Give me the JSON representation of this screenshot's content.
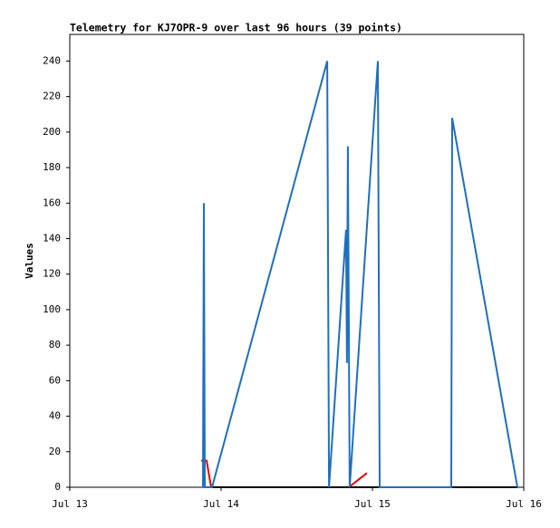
{
  "chart_data": {
    "type": "line",
    "title": "Telemetry for KJ7OPR-9 over last 96 hours (39 points)",
    "y_label": "Values",
    "xlim": [
      0,
      3
    ],
    "xticks": [
      {
        "value": 0,
        "label": "Jul 13"
      },
      {
        "value": 1,
        "label": "Jul 14"
      },
      {
        "value": 2,
        "label": "Jul 15"
      },
      {
        "value": 3,
        "label": "Jul 16"
      }
    ],
    "ylim": [
      0,
      255
    ],
    "yticks": [
      0,
      20,
      40,
      60,
      80,
      100,
      120,
      140,
      160,
      180,
      200,
      220,
      240
    ],
    "series": [
      {
        "color": "#000000",
        "x": [
          0.934,
          2.958
        ],
        "values": [
          0,
          0
        ]
      },
      {
        "color": "#e00000",
        "x": [
          0.868,
          0.904,
          0.934,
          1.844,
          1.844,
          1.964
        ],
        "values": [
          15,
          15,
          0,
          null,
          0,
          8
        ]
      },
      {
        "color": "#1f6fc0",
        "x": [
          0.88,
          0.883,
          0.886,
          0.892,
          0.94,
          1.701,
          1.707,
          1.713,
          1.826,
          1.832,
          1.838,
          1.85,
          2.036,
          2.042,
          2.048,
          2.521,
          2.527,
          2.958
        ],
        "values": [
          0,
          80,
          160,
          0,
          0,
          240,
          120,
          0,
          145,
          70,
          192,
          0,
          240,
          120,
          0,
          0,
          208,
          0
        ]
      }
    ]
  }
}
